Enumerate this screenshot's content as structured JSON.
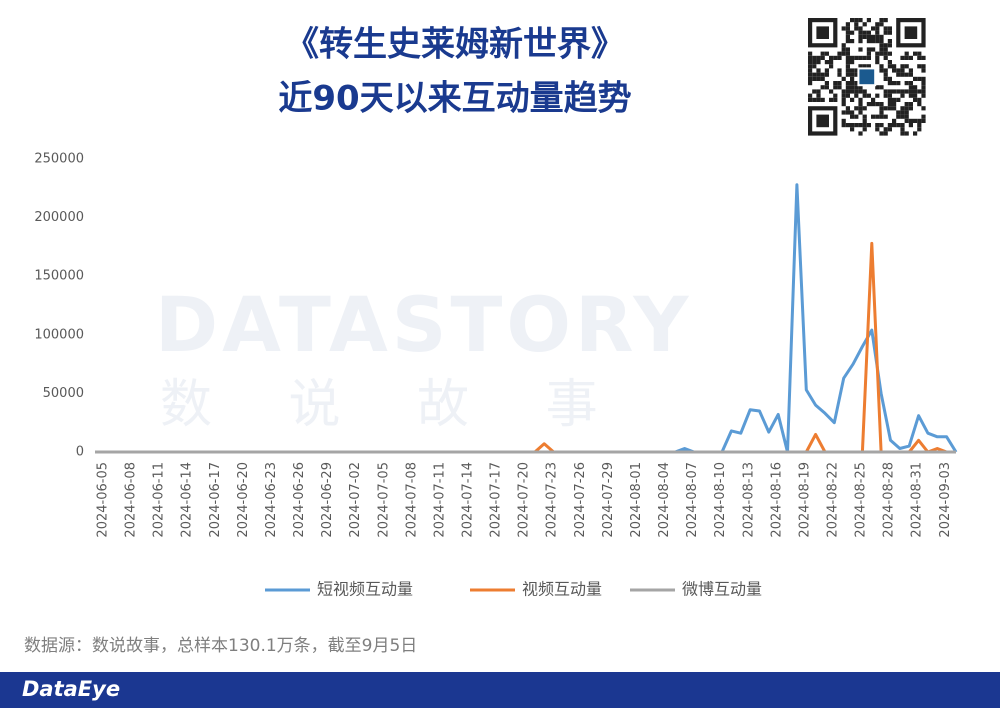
{
  "chart_data": {
    "type": "line",
    "title": "《转生史莱姆新世界》",
    "subtitle": "近90天以来互动量趋势",
    "watermark": "DATASTORY",
    "watermark_cn": "数 说 故 事",
    "source": "数据源：数说故事，总样本130.1万条，截至9月5日",
    "brand": "DataEye",
    "grid": false,
    "legend": "bottom",
    "ylim": [
      0,
      250000
    ],
    "yticks": [
      0,
      50000,
      100000,
      150000,
      200000,
      250000
    ],
    "categories": [
      "2024-06-05",
      null,
      null,
      "2024-06-08",
      null,
      null,
      "2024-06-11",
      null,
      null,
      "2024-06-14",
      null,
      null,
      "2024-06-17",
      null,
      null,
      "2024-06-20",
      null,
      null,
      "2024-06-23",
      null,
      null,
      "2024-06-26",
      null,
      null,
      "2024-06-29",
      null,
      null,
      "2024-07-02",
      null,
      null,
      "2024-07-05",
      null,
      null,
      "2024-07-08",
      null,
      null,
      "2024-07-11",
      null,
      null,
      "2024-07-14",
      null,
      null,
      "2024-07-17",
      null,
      null,
      "2024-07-20",
      null,
      null,
      "2024-07-23",
      null,
      null,
      "2024-07-26",
      null,
      null,
      "2024-07-29",
      null,
      null,
      "2024-08-01",
      null,
      null,
      "2024-08-04",
      null,
      null,
      "2024-08-07",
      null,
      null,
      "2024-08-10",
      null,
      null,
      "2024-08-13",
      null,
      null,
      "2024-08-16",
      null,
      null,
      "2024-08-19",
      null,
      null,
      "2024-08-22",
      null,
      null,
      "2024-08-25",
      null,
      null,
      "2024-08-28",
      null,
      null,
      "2024-08-31",
      null,
      null,
      "2024-09-03",
      null,
      null
    ],
    "series": [
      {
        "name": "短视频互动量",
        "color": "#5b9bd5",
        "values": [
          0,
          0,
          0,
          0,
          0,
          0,
          0,
          0,
          0,
          0,
          0,
          0,
          0,
          0,
          0,
          0,
          0,
          0,
          0,
          0,
          0,
          0,
          0,
          0,
          0,
          0,
          0,
          0,
          0,
          0,
          0,
          0,
          0,
          0,
          0,
          0,
          0,
          0,
          0,
          0,
          0,
          0,
          0,
          0,
          0,
          0,
          0,
          0,
          0,
          0,
          0,
          0,
          0,
          0,
          0,
          0,
          0,
          0,
          0,
          0,
          0,
          0,
          0,
          3000,
          0,
          0,
          0,
          0,
          18000,
          16000,
          36000,
          35000,
          17000,
          32000,
          0,
          228000,
          53000,
          40000,
          33000,
          25000,
          63000,
          75000,
          90000,
          104000,
          50000,
          10000,
          3000,
          5000,
          31000,
          16000,
          13000,
          13000,
          0
        ]
      },
      {
        "name": "视频互动量",
        "color": "#ed7d31",
        "values": [
          0,
          0,
          0,
          0,
          0,
          0,
          0,
          0,
          0,
          0,
          0,
          0,
          0,
          0,
          0,
          0,
          0,
          0,
          0,
          0,
          0,
          0,
          0,
          0,
          0,
          0,
          0,
          0,
          0,
          0,
          0,
          0,
          0,
          0,
          0,
          0,
          0,
          0,
          0,
          0,
          0,
          0,
          0,
          0,
          0,
          0,
          0,
          0,
          7000,
          0,
          0,
          0,
          0,
          0,
          0,
          0,
          0,
          0,
          0,
          0,
          0,
          0,
          0,
          0,
          0,
          0,
          0,
          0,
          0,
          0,
          0,
          0,
          0,
          0,
          0,
          0,
          0,
          15000,
          0,
          0,
          0,
          0,
          0,
          178000,
          0,
          0,
          0,
          0,
          10000,
          0,
          3000,
          0,
          0
        ]
      },
      {
        "name": "微博互动量",
        "color": "#a5a5a5",
        "values": [
          0,
          0,
          0,
          0,
          0,
          0,
          0,
          0,
          0,
          0,
          0,
          0,
          0,
          0,
          0,
          0,
          0,
          0,
          0,
          0,
          0,
          0,
          0,
          0,
          0,
          0,
          0,
          0,
          0,
          0,
          0,
          0,
          0,
          0,
          0,
          0,
          0,
          0,
          0,
          0,
          0,
          0,
          0,
          0,
          0,
          0,
          0,
          0,
          0,
          0,
          0,
          0,
          0,
          0,
          0,
          0,
          0,
          0,
          0,
          0,
          0,
          0,
          0,
          0,
          0,
          0,
          0,
          0,
          0,
          0,
          0,
          0,
          0,
          0,
          0,
          0,
          0,
          0,
          0,
          0,
          0,
          0,
          0,
          0,
          0,
          0,
          0,
          0,
          0,
          0,
          0,
          0,
          0
        ]
      }
    ]
  }
}
